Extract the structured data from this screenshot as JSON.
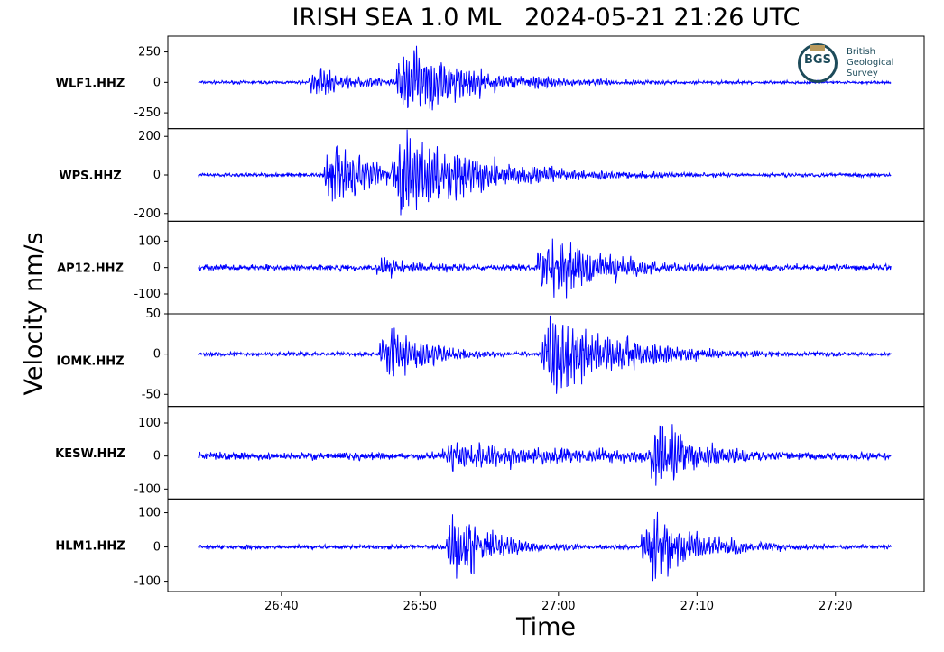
{
  "chart_data": {
    "type": "line",
    "title": "IRISH SEA 1.0 ML   2024-05-21 21:26 UTC",
    "xlabel": "Time",
    "ylabel": "Velocity nm/s",
    "x_ticks": [
      "26:40",
      "26:50",
      "27:00",
      "27:10",
      "27:20"
    ],
    "x_tick_minutes": [
      26.6667,
      26.8333,
      27.0,
      27.1667,
      27.3333
    ],
    "xlim_minutes": [
      26.53,
      27.44
    ],
    "trace_span_minutes": [
      26.5667,
      27.4
    ],
    "line_color": "#0000ff",
    "grid": false,
    "logo_text": "BGS",
    "logo_words": "British\nGeological\nSurvey",
    "panels": [
      {
        "station": "WLF1.HHZ",
        "yticks": [
          250,
          0,
          -250
        ],
        "ylim": [
          -380,
          380
        ],
        "noise": 10,
        "bursts": [
          {
            "onset": 26.7,
            "amp": 150,
            "decay": 0.05,
            "period": 0.0035
          },
          {
            "onset": 26.805,
            "amp": 330,
            "decay": 0.09,
            "period": 0.003
          }
        ]
      },
      {
        "station": "WPS.HHZ",
        "yticks": [
          200,
          0,
          -200
        ],
        "ylim": [
          -240,
          240
        ],
        "noise": 8,
        "bursts": [
          {
            "onset": 26.718,
            "amp": 210,
            "decay": 0.05,
            "period": 0.0035
          },
          {
            "onset": 26.8,
            "amp": 240,
            "decay": 0.1,
            "period": 0.003
          }
        ]
      },
      {
        "station": "AP12.HHZ",
        "yticks": [
          100,
          0,
          -100
        ],
        "ylim": [
          -175,
          175
        ],
        "noise": 9,
        "bursts": [
          {
            "onset": 26.78,
            "amp": 45,
            "decay": 0.05,
            "period": 0.0035
          },
          {
            "onset": 26.975,
            "amp": 160,
            "decay": 0.07,
            "period": 0.003
          }
        ]
      },
      {
        "station": "IOMK.HHZ",
        "yticks": [
          50,
          0,
          -50
        ],
        "ylim": [
          -65,
          50
        ],
        "noise": 2,
        "bursts": [
          {
            "onset": 26.785,
            "amp": 45,
            "decay": 0.05,
            "period": 0.0035
          },
          {
            "onset": 26.978,
            "amp": 55,
            "decay": 0.09,
            "period": 0.003
          }
        ]
      },
      {
        "station": "KESW.HHZ",
        "yticks": [
          100,
          0,
          -100
        ],
        "ylim": [
          -130,
          150
        ],
        "noise": 9,
        "bursts": [
          {
            "onset": 26.86,
            "amp": 40,
            "decay": 0.2,
            "period": 0.0035
          },
          {
            "onset": 27.11,
            "amp": 130,
            "decay": 0.05,
            "period": 0.003
          }
        ]
      },
      {
        "station": "HLM1.HHZ",
        "yticks": [
          100,
          0,
          -100
        ],
        "ylim": [
          -130,
          140
        ],
        "noise": 5,
        "bursts": [
          {
            "onset": 26.865,
            "amp": 120,
            "decay": 0.05,
            "period": 0.0035
          },
          {
            "onset": 27.1,
            "amp": 130,
            "decay": 0.06,
            "period": 0.003
          }
        ]
      }
    ]
  }
}
